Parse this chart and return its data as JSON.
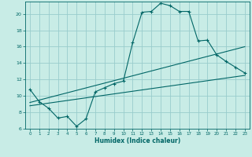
{
  "xlabel": "Humidex (Indice chaleur)",
  "xlim": [
    -0.5,
    23.5
  ],
  "ylim": [
    6,
    21.5
  ],
  "xticks": [
    0,
    1,
    2,
    3,
    4,
    5,
    6,
    7,
    8,
    9,
    10,
    11,
    12,
    13,
    14,
    15,
    16,
    17,
    18,
    19,
    20,
    21,
    22,
    23
  ],
  "yticks": [
    6,
    8,
    10,
    12,
    14,
    16,
    18,
    20
  ],
  "background_color": "#c8ece6",
  "grid_color": "#99cccc",
  "line_color": "#006666",
  "line1_x": [
    0,
    1,
    2,
    3,
    4,
    5,
    6,
    7,
    8,
    9,
    10,
    11,
    12,
    13,
    14,
    15,
    16,
    17,
    18,
    19,
    20,
    21,
    22,
    23
  ],
  "line1_y": [
    10.8,
    9.3,
    8.5,
    7.3,
    7.5,
    6.3,
    7.2,
    10.5,
    11.0,
    11.5,
    11.8,
    16.5,
    20.2,
    20.3,
    21.3,
    21.0,
    20.3,
    20.3,
    16.7,
    16.8,
    15.0,
    14.2,
    13.5,
    12.8
  ],
  "line2_x": [
    0,
    23
  ],
  "line2_y": [
    8.8,
    12.5
  ],
  "line3_x": [
    0,
    23
  ],
  "line3_y": [
    9.2,
    16.0
  ]
}
